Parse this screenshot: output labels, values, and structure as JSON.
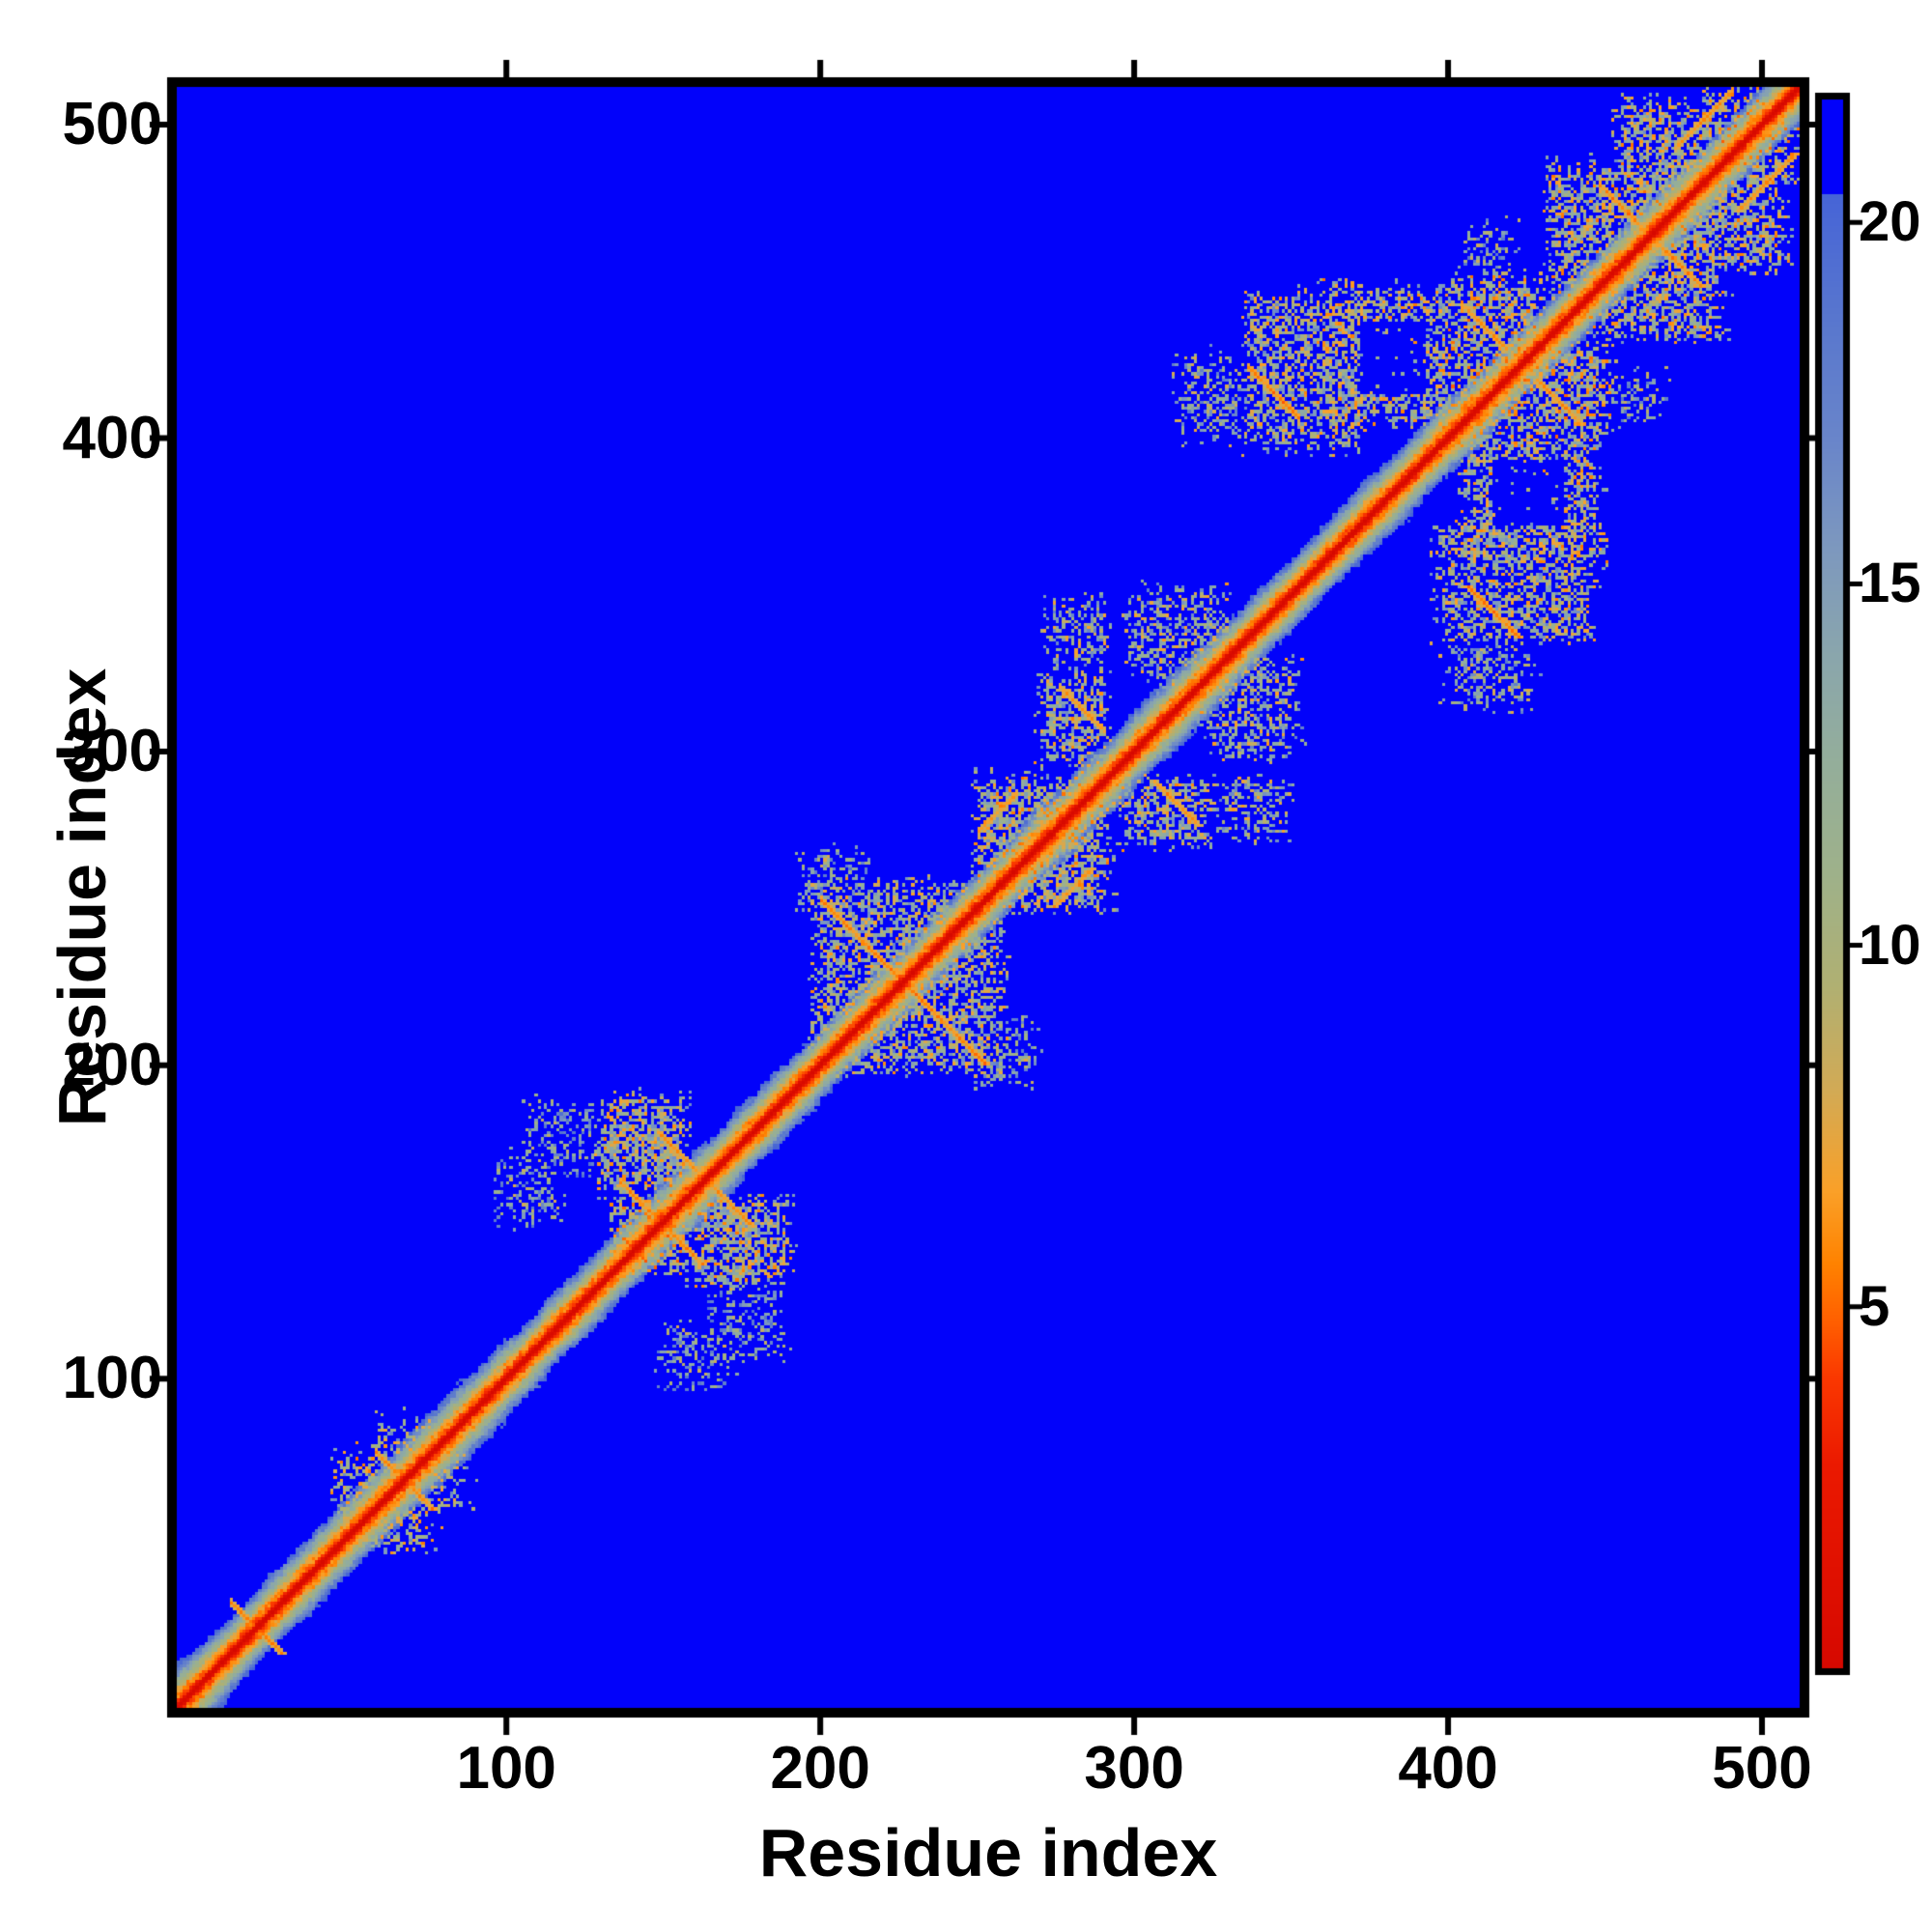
{
  "chart_data": {
    "type": "heatmap",
    "title": "",
    "xlabel": "Residue index",
    "ylabel": "Residue index",
    "x_ticks": [
      100,
      200,
      300,
      400,
      500
    ],
    "y_ticks": [
      100,
      200,
      300,
      400,
      500
    ],
    "n_residues": 517,
    "axis_range": [
      0,
      516
    ],
    "grid": false,
    "background_color": "#0202fa",
    "diagonal_core_color": "#d60800",
    "colorbar": {
      "ticks": [
        5,
        10,
        15,
        20
      ],
      "vmin": 0,
      "vmax": 21.7,
      "over_threshold": 20.4,
      "over_color": "#0202fa",
      "position": "right"
    },
    "colormap_stops": [
      [
        0.0,
        214,
        8,
        0
      ],
      [
        2.8,
        235,
        25,
        0
      ],
      [
        4.0,
        250,
        55,
        0
      ],
      [
        4.8,
        255,
        95,
        0
      ],
      [
        5.6,
        255,
        130,
        0
      ],
      [
        6.6,
        250,
        160,
        40
      ],
      [
        8.0,
        210,
        170,
        85
      ],
      [
        9.5,
        175,
        176,
        115
      ],
      [
        11.0,
        158,
        177,
        138
      ],
      [
        12.5,
        148,
        174,
        154
      ],
      [
        14.0,
        138,
        166,
        172
      ],
      [
        15.5,
        125,
        152,
        190
      ],
      [
        17.0,
        105,
        133,
        202
      ],
      [
        18.5,
        90,
        120,
        205
      ],
      [
        20.4,
        70,
        100,
        215
      ]
    ],
    "diagonal_band": {
      "core_dist": 0,
      "slope_per_residue": 1.9,
      "halfwidth_cells": 14
    },
    "contact_clusters": [
      {
        "i": [
          44,
          62
        ],
        "j": [
          54,
          76
        ],
        "dist": 10,
        "density": 0.55
      },
      {
        "i": [
          56,
          76
        ],
        "j": [
          66,
          88
        ],
        "dist": 11,
        "density": 0.45
      },
      {
        "i": [
          96,
          118
        ],
        "j": [
          148,
          172
        ],
        "dist": 12.5,
        "density": 0.4
      },
      {
        "i": [
          104,
          130
        ],
        "j": [
          162,
          188
        ],
        "dist": 13,
        "density": 0.35
      },
      {
        "i": [
          128,
          158
        ],
        "j": [
          158,
          190
        ],
        "dist": 10,
        "density": 0.68
      },
      {
        "i": [
          132,
          150
        ],
        "j": [
          136,
          158
        ],
        "dist": 9.5,
        "density": 0.6
      },
      {
        "i": [
          196,
          246
        ],
        "j": [
          206,
          258
        ],
        "dist": 10.5,
        "density": 0.55
      },
      {
        "i": [
          192,
          216
        ],
        "j": [
          246,
          268
        ],
        "dist": 12,
        "density": 0.42
      },
      {
        "i": [
          248,
          288
        ],
        "j": [
          252,
          292
        ],
        "dist": 10,
        "density": 0.6
      },
      {
        "i": [
          268,
          292
        ],
        "j": [
          294,
          324
        ],
        "dist": 10.5,
        "density": 0.55
      },
      {
        "i": [
          296,
          330
        ],
        "j": [
          322,
          352
        ],
        "dist": 11,
        "density": 0.5
      },
      {
        "i": [
          270,
          292
        ],
        "j": [
          326,
          348
        ],
        "dist": 11,
        "density": 0.48
      },
      {
        "i": [
          312,
          334
        ],
        "j": [
          398,
          426
        ],
        "dist": 12,
        "density": 0.42
      },
      {
        "i": [
          334,
          374
        ],
        "j": [
          396,
          446
        ],
        "dist": 10.5,
        "density": 0.55
      },
      {
        "i": [
          358,
          402
        ],
        "j": [
          404,
          448
        ],
        "dist": 10,
        "density": 0.6
      },
      {
        "i": [
          396,
          430
        ],
        "j": [
          402,
          452
        ],
        "dist": 9.5,
        "density": 0.55
      },
      {
        "i": [
          404,
          422
        ],
        "j": [
          446,
          468
        ],
        "dist": 12.5,
        "density": 0.38
      },
      {
        "i": [
          430,
          472
        ],
        "j": [
          446,
          488
        ],
        "dist": 10,
        "density": 0.58
      },
      {
        "i": [
          452,
          490
        ],
        "j": [
          468,
          508
        ],
        "dist": 10,
        "density": 0.58
      },
      {
        "i": [
          486,
          511
        ],
        "j": [
          492,
          511
        ],
        "dist": 9.5,
        "density": 0.6
      }
    ],
    "holes": [
      {
        "i": [
          372,
          392
        ],
        "j": [
          414,
          436
        ]
      }
    ],
    "hairpin_streaks": [
      {
        "type": "anti",
        "i": [
          12,
          26
        ],
        "sum": 40,
        "dist": 5.2
      },
      {
        "type": "anti",
        "i": [
          58,
          72
        ],
        "sum": 134,
        "dist": 5.4
      },
      {
        "type": "anti",
        "i": [
          136,
          152
        ],
        "sum": 298,
        "dist": 5.2
      },
      {
        "type": "anti",
        "i": [
          148,
          164
        ],
        "sum": 326,
        "dist": 5.5
      },
      {
        "type": "anti",
        "i": [
          200,
          218
        ],
        "sum": 452,
        "dist": 5.0
      },
      {
        "type": "anti",
        "i": [
          218,
          236
        ],
        "sum": 452,
        "dist": 5.0
      },
      {
        "type": "para",
        "i": [
          250,
          262
        ],
        "offset": 24,
        "dist": 5.5
      },
      {
        "type": "anti",
        "i": [
          276,
          290
        ],
        "sum": 596,
        "dist": 5.5
      },
      {
        "type": "anti",
        "i": [
          336,
          352
        ],
        "sum": 758,
        "dist": 4.8
      },
      {
        "type": "anti",
        "i": [
          404,
          418
        ],
        "sum": 846,
        "dist": 5.5
      },
      {
        "type": "anti",
        "i": [
          448,
          462
        ],
        "sum": 928,
        "dist": 5.2
      },
      {
        "type": "para",
        "i": [
          472,
          490
        ],
        "offset": 20,
        "dist": 5.5
      }
    ]
  }
}
